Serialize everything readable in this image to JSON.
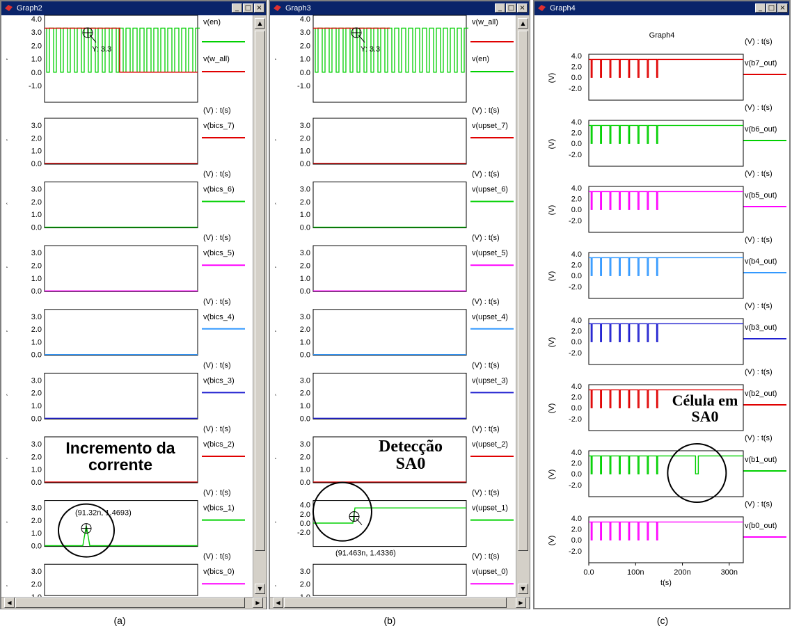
{
  "windows": [
    {
      "title": "Graph2",
      "scroll": "v",
      "traces": [
        {
          "top": "v(en)",
          "bottom": "v(w_all)",
          "topColor": "#00d000",
          "bottomColor": "#e00000"
        },
        {
          "label": "v(bics_7)",
          "color": "#e00000"
        },
        {
          "label": "v(bics_6)",
          "color": "#00d000"
        },
        {
          "label": "v(bics_5)",
          "color": "#ff00ff"
        },
        {
          "label": "v(bics_4)",
          "color": "#3399ff"
        },
        {
          "label": "v(bics_3)",
          "color": "#2020d0"
        },
        {
          "label": "v(bics_2)",
          "color": "#e00000"
        },
        {
          "label": "v(bics_1)",
          "color": "#00d000"
        },
        {
          "label": "v(bics_0)",
          "color": "#ff00ff"
        }
      ],
      "ticks_top": [
        "4.0",
        "3.0",
        "2.0",
        "1.0",
        "0.0",
        "-1.0"
      ],
      "ticks_mid": [
        "3.0",
        "2.0",
        "1.0",
        "0.0"
      ],
      "axis_label": "(V) : t(s)",
      "cursor_label": "Y: 3.3",
      "point_label": "(91.32n, 1.4693)",
      "annotation": [
        "Incremento da",
        "corrente"
      ]
    },
    {
      "title": "Graph3",
      "scroll": "v",
      "traces": [
        {
          "top": "v(w_all)",
          "bottom": "v(en)",
          "topColor": "#e00000",
          "bottomColor": "#00d000"
        },
        {
          "label": "v(upset_7)",
          "color": "#e00000"
        },
        {
          "label": "v(upset_6)",
          "color": "#00d000"
        },
        {
          "label": "v(upset_5)",
          "color": "#ff00ff"
        },
        {
          "label": "v(upset_4)",
          "color": "#3399ff"
        },
        {
          "label": "v(upset_3)",
          "color": "#2020d0"
        },
        {
          "label": "v(upset_2)",
          "color": "#e00000"
        },
        {
          "label": "v(upset_1)",
          "color": "#00d000"
        },
        {
          "label": "v(upset_0)",
          "color": "#ff00ff"
        }
      ],
      "ticks_top": [
        "4.0",
        "3.0",
        "2.0",
        "1.0",
        "0.0",
        "-1.0"
      ],
      "ticks_mid": [
        "3.0",
        "2.0",
        "1.0",
        "0.0"
      ],
      "ticks_p7": [
        "4.0",
        "2.0",
        "0.0",
        "-2.0"
      ],
      "ticks_p8": [
        "3.0",
        "2.0",
        "1.0"
      ],
      "axis_label": "(V) : t(s)",
      "cursor_label": "Y: 3.3",
      "point_label": "(91.463n, 1.4336)",
      "annotation": [
        "Detecção",
        "SA0"
      ]
    },
    {
      "title": "Graph4",
      "heading": "Graph4",
      "traces": [
        {
          "label": "v(b7_out)",
          "color": "#e00000"
        },
        {
          "label": "v(b6_out)",
          "color": "#00d000"
        },
        {
          "label": "v(b5_out)",
          "color": "#ff00ff"
        },
        {
          "label": "v(b4_out)",
          "color": "#3399ff"
        },
        {
          "label": "v(b3_out)",
          "color": "#2020d0"
        },
        {
          "label": "v(b2_out)",
          "color": "#e00000"
        },
        {
          "label": "v(b1_out)",
          "color": "#00d000"
        },
        {
          "label": "v(b0_out)",
          "color": "#ff00ff"
        }
      ],
      "yticks": [
        "4.0",
        "2.0",
        "0.0",
        "-2.0"
      ],
      "ylabel": "(V)",
      "axis_label": "(V) : t(s)",
      "xticks": [
        "0.0",
        "100n",
        "200n",
        "300n"
      ],
      "xlabel": "t(s)",
      "annotation": [
        "Célula em",
        "SA0"
      ]
    }
  ],
  "captions": [
    "(a)",
    "(b)",
    "(c)"
  ],
  "title_buttons": [
    "_",
    "□",
    "×"
  ],
  "scroll_arrows": {
    "up": "▲",
    "down": "▼",
    "left": "◀",
    "right": "▶"
  },
  "colors": {
    "titlebar": "#0a246a",
    "red": "#e00000",
    "green": "#00d000",
    "magenta": "#ff00ff",
    "lightblue": "#3399ff",
    "blue": "#2020d0"
  }
}
